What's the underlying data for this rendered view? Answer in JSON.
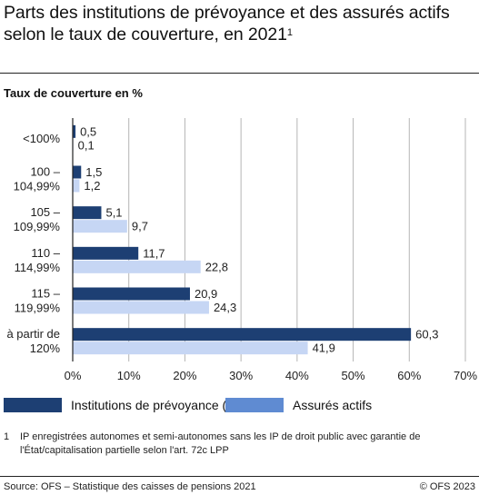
{
  "header": {
    "title": "Parts des institutions de prévoyance et des assurés actifs selon le taux de couverture, en 2021",
    "title_sup": "1",
    "subtitle": "Taux de couverture en %"
  },
  "legend": {
    "items": [
      {
        "label": "Institutions de prévoyance (IP)",
        "color": "#1d3f73"
      },
      {
        "label": "Assurés actifs",
        "color": "#5f8bd2"
      }
    ]
  },
  "colors": {
    "series_ip": "#1d3f73",
    "series_aa": "#c6d6f4",
    "grid": "#b5b5b5",
    "axis": "#222222"
  },
  "footnote": {
    "mark": "1",
    "text": "IP enregistrées autonomes et semi-autonomes sans les IP de droit public avec garantie de l'État/capitalisation partielle selon l'art. 72c LPP"
  },
  "footer": {
    "source": "Source: OFS – Statistique des caisses de pensions 2021",
    "copyright": "© OFS 2023"
  },
  "chart_data": {
    "type": "bar",
    "orientation": "horizontal",
    "categories": [
      [
        "<100%"
      ],
      [
        "100 –",
        "104,99%"
      ],
      [
        "105 –",
        "109,99%"
      ],
      [
        "110 –",
        "114,99%"
      ],
      [
        "115 –",
        "119,99%"
      ],
      [
        "à partir de",
        "120%"
      ]
    ],
    "series": [
      {
        "name": "Institutions de prévoyance (IP)",
        "values": [
          0.5,
          1.5,
          5.1,
          11.7,
          20.9,
          60.3
        ],
        "labels": [
          "0,5",
          "1,5",
          "5,1",
          "11,7",
          "20,9",
          "60,3"
        ]
      },
      {
        "name": "Assurés actifs",
        "values": [
          0.1,
          1.2,
          9.7,
          22.8,
          24.3,
          41.9
        ],
        "labels": [
          "0,1",
          "1,2",
          "9,7",
          "22,8",
          "24,3",
          "41,9"
        ]
      }
    ],
    "xlim": [
      0,
      70
    ],
    "xticks": [
      0,
      10,
      20,
      30,
      40,
      50,
      60,
      70
    ],
    "xtick_labels": [
      "0%",
      "10%",
      "20%",
      "30%",
      "40%",
      "50%",
      "60%",
      "70%"
    ],
    "grid": true,
    "legend_position": "bottom-left"
  }
}
